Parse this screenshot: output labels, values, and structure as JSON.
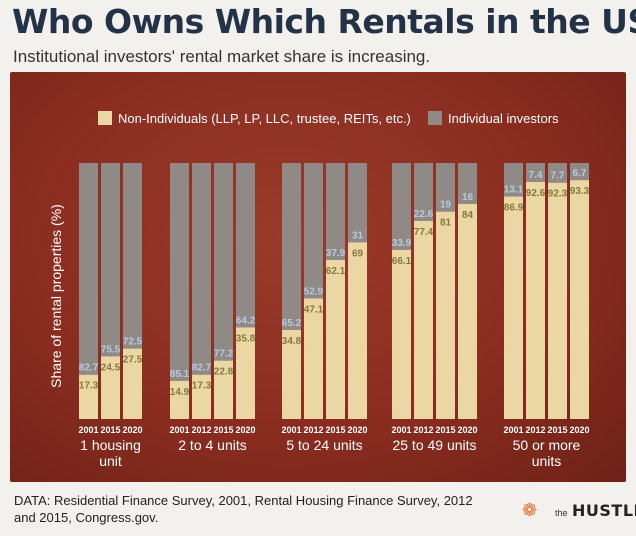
{
  "header": {
    "title": "Who Owns Which Rentals in the US",
    "subtitle": "Institutional investors' rental market share is increasing."
  },
  "footer": {
    "source_line1": "DATA: Residential Finance Survey, 2001, Rental Housing Finance Survey, 2012",
    "source_line2": "and 2015, Congress.gov.",
    "logo_the": "the",
    "logo_word": "HUSTLE"
  },
  "colors": {
    "non_individual": "#ebd7a4",
    "individual": "#8f8a86",
    "individual_label": "#b7cbe0",
    "non_individual_label": "#827a3c",
    "background": "#8a2d20"
  },
  "chart_data": {
    "type": "bar",
    "stacked": true,
    "ylabel": "Share of rental properties (%)",
    "ylim": [
      0,
      100
    ],
    "legend": {
      "placement": "top",
      "entries": [
        {
          "name": "Non-Individuals (LLP, LP, LLC, trustee, REITs, etc.)",
          "key": "non_individual"
        },
        {
          "name": "Individual investors",
          "key": "individual"
        }
      ]
    },
    "groups": [
      {
        "label": [
          "1 housing",
          "unit"
        ],
        "years": [
          "2001",
          "2015",
          "2020"
        ],
        "non_individual": [
          17.3,
          24.5,
          27.5
        ],
        "individual": [
          82.7,
          75.5,
          72.5
        ]
      },
      {
        "label": [
          "2 to 4 units"
        ],
        "years": [
          "2001",
          "2012",
          "2015",
          "2020"
        ],
        "non_individual": [
          14.9,
          17.3,
          22.8,
          35.8
        ],
        "individual": [
          85.1,
          82.7,
          77.2,
          64.2
        ]
      },
      {
        "label": [
          "5 to 24 units"
        ],
        "years": [
          "2001",
          "2012",
          "2015",
          "2020"
        ],
        "non_individual": [
          34.8,
          47.1,
          62.1,
          69
        ],
        "individual": [
          65.2,
          52.9,
          37.9,
          31
        ]
      },
      {
        "label": [
          "25 to 49 units"
        ],
        "years": [
          "2001",
          "2012",
          "2015",
          "2020"
        ],
        "non_individual": [
          66.1,
          77.4,
          81,
          84
        ],
        "individual": [
          33.9,
          22.6,
          19,
          16
        ]
      },
      {
        "label": [
          "50 or more",
          "units"
        ],
        "years": [
          "2001",
          "2012",
          "2015",
          "2020"
        ],
        "non_individual": [
          86.9,
          92.6,
          92.3,
          93.3
        ],
        "individual": [
          13.1,
          7.4,
          7.7,
          6.7
        ]
      }
    ]
  }
}
